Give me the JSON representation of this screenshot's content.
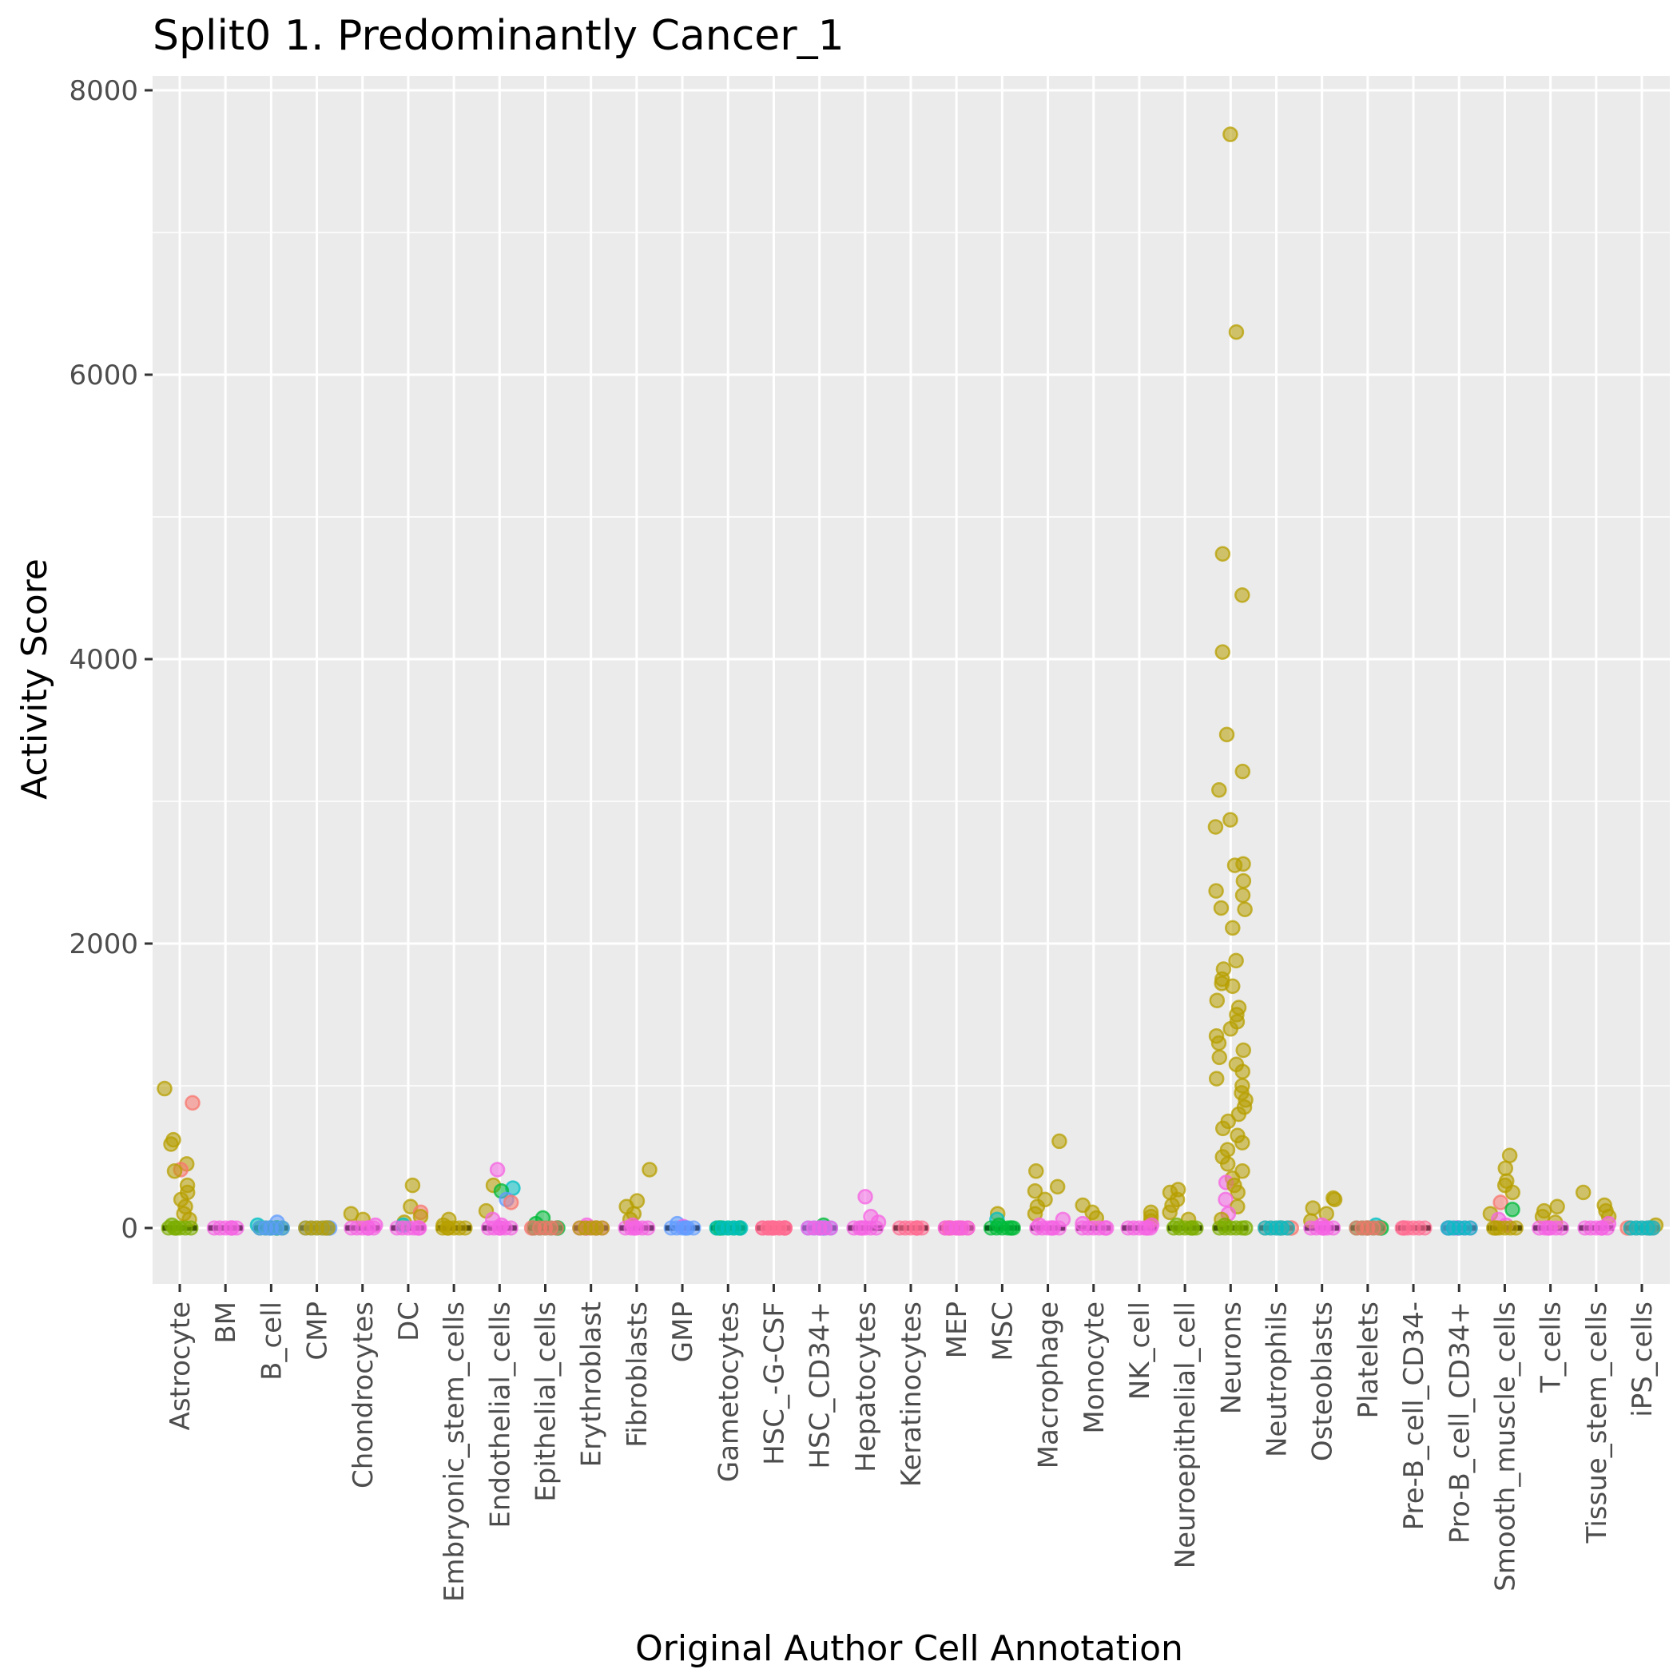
{
  "chart_data": {
    "type": "scatter",
    "title": "Split0 1. Predominantly Cancer_1",
    "xlabel": "Original Author Cell Annotation",
    "ylabel": "Activity Score",
    "ylim": [
      -400,
      8150
    ],
    "yticks": [
      0,
      2000,
      4000,
      6000,
      8000
    ],
    "grid": true,
    "legend": "none",
    "categories": [
      "Astrocyte",
      "BM",
      "B_cell",
      "CMP",
      "Chondrocytes",
      "DC",
      "Embryonic_stem_cells",
      "Endothelial_cells",
      "Epithelial_cells",
      "Erythroblast",
      "Fibroblasts",
      "GMP",
      "Gametocytes",
      "HSC_-G-CSF",
      "HSC_CD34+",
      "Hepatocytes",
      "Keratinocytes",
      "MEP",
      "MSC",
      "Macrophage",
      "Monocyte",
      "NK_cell",
      "Neuroepithelial_cell",
      "Neurons",
      "Neutrophils",
      "Osteoblasts",
      "Platelets",
      "Pre-B_cell_CD34-",
      "Pro-B_cell_CD34+",
      "Smooth_muscle_cells",
      "T_cells",
      "Tissue_stem_cells",
      "iPS_cells"
    ],
    "median_values": [
      0,
      0,
      0,
      0,
      0,
      0,
      0,
      0,
      0,
      0,
      0,
      0,
      0,
      0,
      0,
      0,
      0,
      0,
      0,
      0,
      0,
      0,
      0,
      0,
      0,
      0,
      0,
      0,
      0,
      0,
      0,
      0,
      0
    ],
    "colors": {
      "olive": "#B79F00",
      "salmon": "#F8766D",
      "green": "#00BA38",
      "teal": "#00BFC4",
      "blue": "#619CFF",
      "magenta": "#F564E3",
      "pink": "#FF6C91",
      "lime": "#7CAE00",
      "median": "#000000",
      "panel": "#EBEBEB",
      "grid": "#FFFFFF"
    },
    "points": [
      {
        "cat": "Astrocyte",
        "v": 980,
        "c": "olive"
      },
      {
        "cat": "Astrocyte",
        "v": 880,
        "c": "salmon"
      },
      {
        "cat": "Astrocyte",
        "v": 620,
        "c": "olive"
      },
      {
        "cat": "Astrocyte",
        "v": 590,
        "c": "olive"
      },
      {
        "cat": "Astrocyte",
        "v": 450,
        "c": "olive"
      },
      {
        "cat": "Astrocyte",
        "v": 410,
        "c": "salmon"
      },
      {
        "cat": "Astrocyte",
        "v": 400,
        "c": "olive"
      },
      {
        "cat": "Astrocyte",
        "v": 300,
        "c": "olive"
      },
      {
        "cat": "Astrocyte",
        "v": 250,
        "c": "olive"
      },
      {
        "cat": "Astrocyte",
        "v": 200,
        "c": "olive"
      },
      {
        "cat": "Astrocyte",
        "v": 150,
        "c": "olive"
      },
      {
        "cat": "Astrocyte",
        "v": 100,
        "c": "olive"
      },
      {
        "cat": "Astrocyte",
        "v": 60,
        "c": "olive"
      },
      {
        "cat": "Astrocyte",
        "v": 20,
        "c": "lime"
      },
      {
        "cat": "Astrocyte",
        "v": 0,
        "c": "lime"
      },
      {
        "cat": "BM",
        "v": 0,
        "c": "magenta"
      },
      {
        "cat": "B_cell",
        "v": 40,
        "c": "blue"
      },
      {
        "cat": "B_cell",
        "v": 20,
        "c": "teal"
      },
      {
        "cat": "B_cell",
        "v": 0,
        "c": "green"
      },
      {
        "cat": "B_cell",
        "v": 0,
        "c": "blue"
      },
      {
        "cat": "CMP",
        "v": 0,
        "c": "blue"
      },
      {
        "cat": "CMP",
        "v": 0,
        "c": "olive"
      },
      {
        "cat": "Chondrocytes",
        "v": 100,
        "c": "olive"
      },
      {
        "cat": "Chondrocytes",
        "v": 60,
        "c": "olive"
      },
      {
        "cat": "Chondrocytes",
        "v": 20,
        "c": "magenta"
      },
      {
        "cat": "Chondrocytes",
        "v": 0,
        "c": "magenta"
      },
      {
        "cat": "DC",
        "v": 300,
        "c": "olive"
      },
      {
        "cat": "DC",
        "v": 150,
        "c": "olive"
      },
      {
        "cat": "DC",
        "v": 110,
        "c": "salmon"
      },
      {
        "cat": "DC",
        "v": 80,
        "c": "olive"
      },
      {
        "cat": "DC",
        "v": 40,
        "c": "olive"
      },
      {
        "cat": "DC",
        "v": 20,
        "c": "teal"
      },
      {
        "cat": "DC",
        "v": 0,
        "c": "magenta"
      },
      {
        "cat": "Embryonic_stem_cells",
        "v": 60,
        "c": "olive"
      },
      {
        "cat": "Embryonic_stem_cells",
        "v": 20,
        "c": "olive"
      },
      {
        "cat": "Embryonic_stem_cells",
        "v": 0,
        "c": "olive"
      },
      {
        "cat": "Endothelial_cells",
        "v": 410,
        "c": "magenta"
      },
      {
        "cat": "Endothelial_cells",
        "v": 300,
        "c": "olive"
      },
      {
        "cat": "Endothelial_cells",
        "v": 280,
        "c": "teal"
      },
      {
        "cat": "Endothelial_cells",
        "v": 260,
        "c": "green"
      },
      {
        "cat": "Endothelial_cells",
        "v": 200,
        "c": "blue"
      },
      {
        "cat": "Endothelial_cells",
        "v": 180,
        "c": "salmon"
      },
      {
        "cat": "Endothelial_cells",
        "v": 120,
        "c": "olive"
      },
      {
        "cat": "Endothelial_cells",
        "v": 60,
        "c": "magenta"
      },
      {
        "cat": "Endothelial_cells",
        "v": 20,
        "c": "magenta"
      },
      {
        "cat": "Endothelial_cells",
        "v": 0,
        "c": "magenta"
      },
      {
        "cat": "Epithelial_cells",
        "v": 70,
        "c": "green"
      },
      {
        "cat": "Epithelial_cells",
        "v": 30,
        "c": "green"
      },
      {
        "cat": "Epithelial_cells",
        "v": 0,
        "c": "green"
      },
      {
        "cat": "Epithelial_cells",
        "v": 0,
        "c": "salmon"
      },
      {
        "cat": "Erythroblast",
        "v": 20,
        "c": "magenta"
      },
      {
        "cat": "Erythroblast",
        "v": 0,
        "c": "magenta"
      },
      {
        "cat": "Erythroblast",
        "v": 0,
        "c": "olive"
      },
      {
        "cat": "Fibroblasts",
        "v": 410,
        "c": "olive"
      },
      {
        "cat": "Fibroblasts",
        "v": 190,
        "c": "olive"
      },
      {
        "cat": "Fibroblasts",
        "v": 150,
        "c": "olive"
      },
      {
        "cat": "Fibroblasts",
        "v": 100,
        "c": "olive"
      },
      {
        "cat": "Fibroblasts",
        "v": 60,
        "c": "olive"
      },
      {
        "cat": "Fibroblasts",
        "v": 20,
        "c": "magenta"
      },
      {
        "cat": "Fibroblasts",
        "v": 0,
        "c": "magenta"
      },
      {
        "cat": "GMP",
        "v": 30,
        "c": "blue"
      },
      {
        "cat": "GMP",
        "v": 10,
        "c": "magenta"
      },
      {
        "cat": "GMP",
        "v": 0,
        "c": "blue"
      },
      {
        "cat": "Gametocytes",
        "v": 0,
        "c": "green"
      },
      {
        "cat": "Gametocytes",
        "v": 0,
        "c": "teal"
      },
      {
        "cat": "HSC_-G-CSF",
        "v": 0,
        "c": "pink"
      },
      {
        "cat": "HSC_-G-CSF",
        "v": 0,
        "c": "pink"
      },
      {
        "cat": "HSC_CD34+",
        "v": 20,
        "c": "green"
      },
      {
        "cat": "HSC_CD34+",
        "v": 0,
        "c": "blue"
      },
      {
        "cat": "HSC_CD34+",
        "v": 0,
        "c": "magenta"
      },
      {
        "cat": "Hepatocytes",
        "v": 220,
        "c": "magenta"
      },
      {
        "cat": "Hepatocytes",
        "v": 80,
        "c": "magenta"
      },
      {
        "cat": "Hepatocytes",
        "v": 40,
        "c": "magenta"
      },
      {
        "cat": "Hepatocytes",
        "v": 0,
        "c": "magenta"
      },
      {
        "cat": "Keratinocytes",
        "v": 0,
        "c": "pink"
      },
      {
        "cat": "MEP",
        "v": 0,
        "c": "pink"
      },
      {
        "cat": "MEP",
        "v": 0,
        "c": "magenta"
      },
      {
        "cat": "MSC",
        "v": 100,
        "c": "olive"
      },
      {
        "cat": "MSC",
        "v": 60,
        "c": "teal"
      },
      {
        "cat": "MSC",
        "v": 20,
        "c": "green"
      },
      {
        "cat": "MSC",
        "v": 0,
        "c": "green"
      },
      {
        "cat": "Macrophage",
        "v": 610,
        "c": "olive"
      },
      {
        "cat": "Macrophage",
        "v": 400,
        "c": "olive"
      },
      {
        "cat": "Macrophage",
        "v": 290,
        "c": "olive"
      },
      {
        "cat": "Macrophage",
        "v": 260,
        "c": "olive"
      },
      {
        "cat": "Macrophage",
        "v": 200,
        "c": "olive"
      },
      {
        "cat": "Macrophage",
        "v": 150,
        "c": "olive"
      },
      {
        "cat": "Macrophage",
        "v": 100,
        "c": "olive"
      },
      {
        "cat": "Macrophage",
        "v": 60,
        "c": "magenta"
      },
      {
        "cat": "Macrophage",
        "v": 20,
        "c": "magenta"
      },
      {
        "cat": "Macrophage",
        "v": 0,
        "c": "magenta"
      },
      {
        "cat": "Monocyte",
        "v": 160,
        "c": "olive"
      },
      {
        "cat": "Monocyte",
        "v": 110,
        "c": "olive"
      },
      {
        "cat": "Monocyte",
        "v": 70,
        "c": "olive"
      },
      {
        "cat": "Monocyte",
        "v": 30,
        "c": "magenta"
      },
      {
        "cat": "Monocyte",
        "v": 0,
        "c": "magenta"
      },
      {
        "cat": "NK_cell",
        "v": 110,
        "c": "olive"
      },
      {
        "cat": "NK_cell",
        "v": 80,
        "c": "olive"
      },
      {
        "cat": "NK_cell",
        "v": 50,
        "c": "olive"
      },
      {
        "cat": "NK_cell",
        "v": 20,
        "c": "magenta"
      },
      {
        "cat": "NK_cell",
        "v": 0,
        "c": "magenta"
      },
      {
        "cat": "Neuroepithelial_cell",
        "v": 270,
        "c": "olive"
      },
      {
        "cat": "Neuroepithelial_cell",
        "v": 250,
        "c": "olive"
      },
      {
        "cat": "Neuroepithelial_cell",
        "v": 200,
        "c": "olive"
      },
      {
        "cat": "Neuroepithelial_cell",
        "v": 160,
        "c": "olive"
      },
      {
        "cat": "Neuroepithelial_cell",
        "v": 110,
        "c": "olive"
      },
      {
        "cat": "Neuroepithelial_cell",
        "v": 60,
        "c": "olive"
      },
      {
        "cat": "Neuroepithelial_cell",
        "v": 20,
        "c": "lime"
      },
      {
        "cat": "Neuroepithelial_cell",
        "v": 0,
        "c": "lime"
      },
      {
        "cat": "Neurons",
        "v": 7690,
        "c": "olive"
      },
      {
        "cat": "Neurons",
        "v": 6300,
        "c": "olive"
      },
      {
        "cat": "Neurons",
        "v": 4740,
        "c": "olive"
      },
      {
        "cat": "Neurons",
        "v": 4450,
        "c": "olive"
      },
      {
        "cat": "Neurons",
        "v": 4050,
        "c": "olive"
      },
      {
        "cat": "Neurons",
        "v": 3470,
        "c": "olive"
      },
      {
        "cat": "Neurons",
        "v": 3210,
        "c": "olive"
      },
      {
        "cat": "Neurons",
        "v": 3080,
        "c": "olive"
      },
      {
        "cat": "Neurons",
        "v": 2870,
        "c": "olive"
      },
      {
        "cat": "Neurons",
        "v": 2820,
        "c": "olive"
      },
      {
        "cat": "Neurons",
        "v": 2560,
        "c": "olive"
      },
      {
        "cat": "Neurons",
        "v": 2550,
        "c": "olive"
      },
      {
        "cat": "Neurons",
        "v": 2440,
        "c": "olive"
      },
      {
        "cat": "Neurons",
        "v": 2370,
        "c": "olive"
      },
      {
        "cat": "Neurons",
        "v": 2340,
        "c": "olive"
      },
      {
        "cat": "Neurons",
        "v": 2250,
        "c": "olive"
      },
      {
        "cat": "Neurons",
        "v": 2240,
        "c": "olive"
      },
      {
        "cat": "Neurons",
        "v": 2110,
        "c": "olive"
      },
      {
        "cat": "Neurons",
        "v": 1880,
        "c": "olive"
      },
      {
        "cat": "Neurons",
        "v": 1820,
        "c": "olive"
      },
      {
        "cat": "Neurons",
        "v": 1750,
        "c": "olive"
      },
      {
        "cat": "Neurons",
        "v": 1720,
        "c": "olive"
      },
      {
        "cat": "Neurons",
        "v": 1700,
        "c": "olive"
      },
      {
        "cat": "Neurons",
        "v": 1600,
        "c": "olive"
      },
      {
        "cat": "Neurons",
        "v": 1550,
        "c": "olive"
      },
      {
        "cat": "Neurons",
        "v": 1500,
        "c": "olive"
      },
      {
        "cat": "Neurons",
        "v": 1450,
        "c": "olive"
      },
      {
        "cat": "Neurons",
        "v": 1400,
        "c": "olive"
      },
      {
        "cat": "Neurons",
        "v": 1350,
        "c": "olive"
      },
      {
        "cat": "Neurons",
        "v": 1300,
        "c": "olive"
      },
      {
        "cat": "Neurons",
        "v": 1250,
        "c": "olive"
      },
      {
        "cat": "Neurons",
        "v": 1200,
        "c": "olive"
      },
      {
        "cat": "Neurons",
        "v": 1150,
        "c": "olive"
      },
      {
        "cat": "Neurons",
        "v": 1100,
        "c": "olive"
      },
      {
        "cat": "Neurons",
        "v": 1050,
        "c": "olive"
      },
      {
        "cat": "Neurons",
        "v": 1000,
        "c": "olive"
      },
      {
        "cat": "Neurons",
        "v": 950,
        "c": "olive"
      },
      {
        "cat": "Neurons",
        "v": 900,
        "c": "olive"
      },
      {
        "cat": "Neurons",
        "v": 850,
        "c": "olive"
      },
      {
        "cat": "Neurons",
        "v": 800,
        "c": "olive"
      },
      {
        "cat": "Neurons",
        "v": 750,
        "c": "olive"
      },
      {
        "cat": "Neurons",
        "v": 700,
        "c": "olive"
      },
      {
        "cat": "Neurons",
        "v": 650,
        "c": "olive"
      },
      {
        "cat": "Neurons",
        "v": 600,
        "c": "olive"
      },
      {
        "cat": "Neurons",
        "v": 550,
        "c": "olive"
      },
      {
        "cat": "Neurons",
        "v": 500,
        "c": "olive"
      },
      {
        "cat": "Neurons",
        "v": 450,
        "c": "olive"
      },
      {
        "cat": "Neurons",
        "v": 400,
        "c": "olive"
      },
      {
        "cat": "Neurons",
        "v": 350,
        "c": "olive"
      },
      {
        "cat": "Neurons",
        "v": 320,
        "c": "magenta"
      },
      {
        "cat": "Neurons",
        "v": 300,
        "c": "olive"
      },
      {
        "cat": "Neurons",
        "v": 250,
        "c": "olive"
      },
      {
        "cat": "Neurons",
        "v": 200,
        "c": "magenta"
      },
      {
        "cat": "Neurons",
        "v": 150,
        "c": "olive"
      },
      {
        "cat": "Neurons",
        "v": 100,
        "c": "magenta"
      },
      {
        "cat": "Neurons",
        "v": 60,
        "c": "olive"
      },
      {
        "cat": "Neurons",
        "v": 20,
        "c": "lime"
      },
      {
        "cat": "Neurons",
        "v": 0,
        "c": "lime"
      },
      {
        "cat": "Neutrophils",
        "v": 0,
        "c": "salmon"
      },
      {
        "cat": "Neutrophils",
        "v": 0,
        "c": "teal"
      },
      {
        "cat": "Osteoblasts",
        "v": 210,
        "c": "olive"
      },
      {
        "cat": "Osteoblasts",
        "v": 200,
        "c": "olive"
      },
      {
        "cat": "Osteoblasts",
        "v": 140,
        "c": "olive"
      },
      {
        "cat": "Osteoblasts",
        "v": 100,
        "c": "olive"
      },
      {
        "cat": "Osteoblasts",
        "v": 50,
        "c": "olive"
      },
      {
        "cat": "Osteoblasts",
        "v": 20,
        "c": "magenta"
      },
      {
        "cat": "Osteoblasts",
        "v": 0,
        "c": "magenta"
      },
      {
        "cat": "Platelets",
        "v": 20,
        "c": "teal"
      },
      {
        "cat": "Platelets",
        "v": 0,
        "c": "green"
      },
      {
        "cat": "Platelets",
        "v": 0,
        "c": "salmon"
      },
      {
        "cat": "Pre-B_cell_CD34-",
        "v": 0,
        "c": "pink"
      },
      {
        "cat": "Pro-B_cell_CD34+",
        "v": 0,
        "c": "magenta"
      },
      {
        "cat": "Pro-B_cell_CD34+",
        "v": 0,
        "c": "teal"
      },
      {
        "cat": "Smooth_muscle_cells",
        "v": 510,
        "c": "olive"
      },
      {
        "cat": "Smooth_muscle_cells",
        "v": 420,
        "c": "olive"
      },
      {
        "cat": "Smooth_muscle_cells",
        "v": 330,
        "c": "olive"
      },
      {
        "cat": "Smooth_muscle_cells",
        "v": 300,
        "c": "olive"
      },
      {
        "cat": "Smooth_muscle_cells",
        "v": 250,
        "c": "olive"
      },
      {
        "cat": "Smooth_muscle_cells",
        "v": 180,
        "c": "salmon"
      },
      {
        "cat": "Smooth_muscle_cells",
        "v": 130,
        "c": "green"
      },
      {
        "cat": "Smooth_muscle_cells",
        "v": 100,
        "c": "olive"
      },
      {
        "cat": "Smooth_muscle_cells",
        "v": 60,
        "c": "magenta"
      },
      {
        "cat": "Smooth_muscle_cells",
        "v": 20,
        "c": "magenta"
      },
      {
        "cat": "Smooth_muscle_cells",
        "v": 0,
        "c": "olive"
      },
      {
        "cat": "T_cells",
        "v": 150,
        "c": "olive"
      },
      {
        "cat": "T_cells",
        "v": 120,
        "c": "olive"
      },
      {
        "cat": "T_cells",
        "v": 80,
        "c": "olive"
      },
      {
        "cat": "T_cells",
        "v": 40,
        "c": "olive"
      },
      {
        "cat": "T_cells",
        "v": 0,
        "c": "magenta"
      },
      {
        "cat": "Tissue_stem_cells",
        "v": 250,
        "c": "olive"
      },
      {
        "cat": "Tissue_stem_cells",
        "v": 160,
        "c": "olive"
      },
      {
        "cat": "Tissue_stem_cells",
        "v": 120,
        "c": "olive"
      },
      {
        "cat": "Tissue_stem_cells",
        "v": 80,
        "c": "olive"
      },
      {
        "cat": "Tissue_stem_cells",
        "v": 30,
        "c": "magenta"
      },
      {
        "cat": "Tissue_stem_cells",
        "v": 0,
        "c": "magenta"
      },
      {
        "cat": "iPS_cells",
        "v": 20,
        "c": "olive"
      },
      {
        "cat": "iPS_cells",
        "v": 0,
        "c": "salmon"
      },
      {
        "cat": "iPS_cells",
        "v": 0,
        "c": "teal"
      }
    ]
  }
}
